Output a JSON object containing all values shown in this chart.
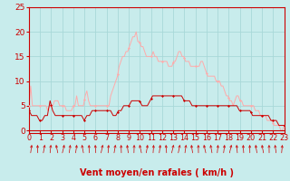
{
  "background_color": "#c8ecec",
  "grid_color": "#a8d8d8",
  "axis_color": "#cc0000",
  "label_color": "#cc0000",
  "xlabel": "Vent moyen/en rafales ( km/h )",
  "ylim": [
    0,
    25
  ],
  "xlim": [
    0,
    23
  ],
  "yticks": [
    0,
    5,
    10,
    15,
    20,
    25
  ],
  "xticks": [
    0,
    1,
    2,
    3,
    4,
    5,
    6,
    7,
    8,
    9,
    10,
    11,
    12,
    13,
    14,
    15,
    16,
    17,
    18,
    19,
    20,
    21,
    22,
    23
  ],
  "wind_avg_y": [
    4,
    3,
    3,
    3,
    2,
    2,
    3,
    3,
    6,
    4,
    3,
    3,
    3,
    3,
    3,
    3,
    3,
    3,
    3,
    3,
    3,
    2,
    3,
    3,
    4,
    4,
    4,
    4,
    4,
    4,
    4,
    4,
    3,
    3,
    4,
    4,
    5,
    5,
    5,
    6,
    6,
    6,
    6,
    5,
    5,
    5,
    6,
    7,
    7,
    7,
    7,
    7,
    7,
    7,
    7,
    7,
    7,
    7,
    7,
    6,
    6,
    6,
    5,
    5,
    5,
    5,
    5,
    5,
    5,
    5,
    5,
    5,
    5,
    5,
    5,
    5,
    5,
    5,
    5,
    5,
    4,
    4,
    4,
    4,
    4,
    3,
    3,
    3,
    3,
    3,
    3,
    3,
    2,
    2,
    2,
    1,
    1,
    1
  ],
  "wind_gust_y": [
    5,
    9,
    5,
    5,
    5,
    5,
    5,
    5,
    5,
    5,
    5,
    4,
    5,
    5,
    5,
    6,
    6,
    6,
    5,
    5,
    5,
    5,
    4,
    4,
    4,
    4,
    5,
    5,
    7,
    5,
    5,
    5,
    5,
    7,
    8,
    6,
    5,
    5,
    5,
    5,
    5,
    5,
    5,
    5,
    5,
    5,
    5,
    5,
    7,
    8,
    9,
    10,
    11,
    13,
    14,
    15,
    15,
    16,
    16,
    17,
    18,
    19,
    19,
    20,
    18,
    18,
    17,
    17,
    16,
    15,
    15,
    15,
    15,
    16,
    15,
    15,
    14,
    14,
    14,
    14,
    14,
    14,
    13,
    13,
    13,
    14,
    14,
    15,
    16,
    16,
    15,
    15,
    14,
    14,
    14,
    13,
    13,
    13,
    13,
    13,
    13,
    14,
    14,
    13,
    12,
    11,
    11,
    11,
    11,
    11,
    10,
    10,
    10,
    9,
    9,
    8,
    7,
    7,
    6,
    6,
    5,
    6,
    7,
    7,
    6,
    6,
    5,
    5,
    5,
    5,
    5,
    5,
    5,
    4,
    4,
    4,
    3,
    3,
    3,
    3,
    2,
    2,
    2,
    2,
    1,
    1,
    1,
    1,
    0,
    0,
    1
  ],
  "line_color_avg": "#cc0000",
  "line_color_gust": "#ffaaaa",
  "marker_style": "D",
  "marker_size_avg": 1.5,
  "marker_size_gust": 1.5
}
